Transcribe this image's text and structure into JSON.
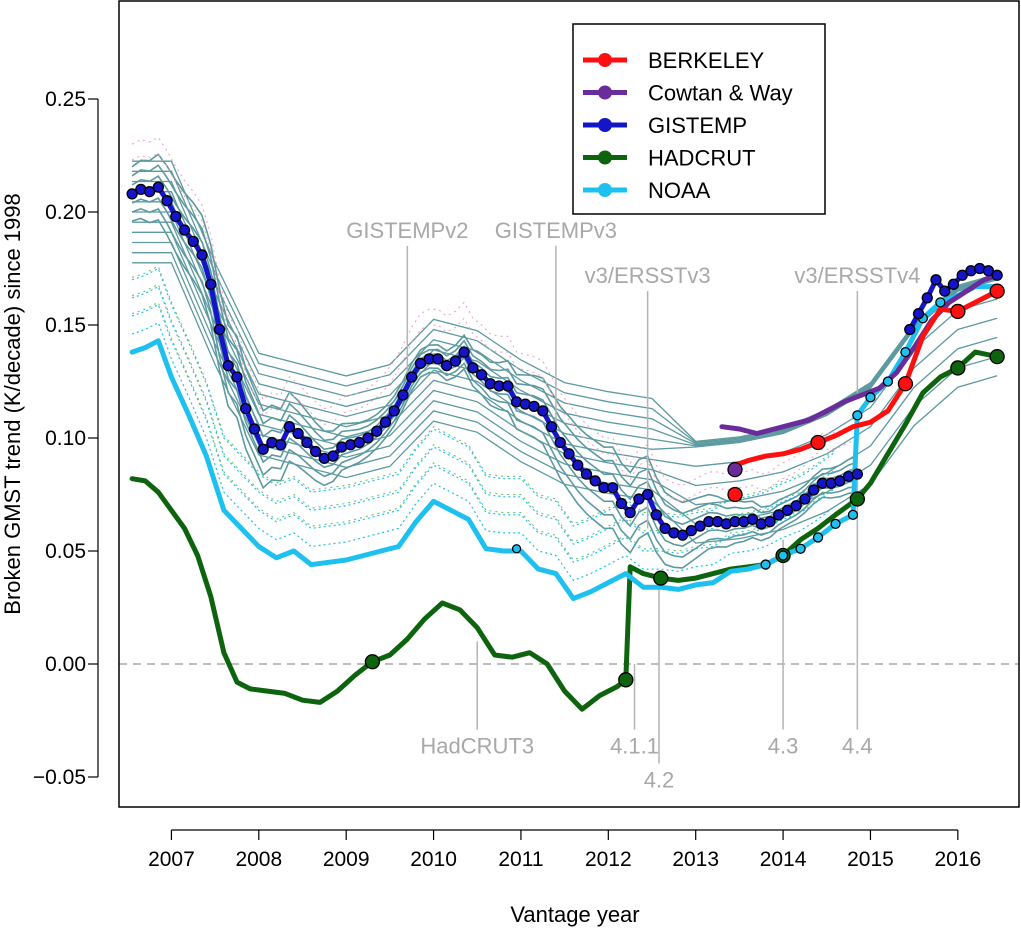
{
  "chart_data": {
    "type": "line",
    "xlabel": "Vantage year",
    "ylabel": "Broken GMST trend (K/decade) since 1998",
    "xlim": [
      2006.4,
      2016.7
    ],
    "ylim": [
      -0.06,
      0.285
    ],
    "x_ticks": [
      2007,
      2008,
      2009,
      2010,
      2011,
      2012,
      2013,
      2014,
      2015,
      2016
    ],
    "y_ticks": [
      -0.05,
      0.0,
      0.05,
      0.1,
      0.15,
      0.2,
      0.25
    ],
    "y_tick_labels": [
      "−0.05",
      "0.00",
      "0.05",
      "0.10",
      "0.15",
      "0.20",
      "0.25"
    ],
    "zero_line": 0.0,
    "legend": {
      "position": "top-right",
      "entries": [
        {
          "name": "BERKELEY",
          "color": "#ff1010"
        },
        {
          "name": "Cowtan & Way",
          "color": "#6a2c9a"
        },
        {
          "name": "GISTEMP",
          "color": "#1414c8"
        },
        {
          "name": "HADCRUT",
          "color": "#0e640e"
        },
        {
          "name": "NOAA",
          "color": "#1ec0f0"
        }
      ]
    },
    "version_markers": [
      {
        "label": "GISTEMPv2",
        "x": 2009.7,
        "y_top": 0.185,
        "y_bottom": 0.12,
        "side": "top"
      },
      {
        "label": "GISTEMPv3",
        "x": 2011.4,
        "y_top": 0.185,
        "y_bottom": 0.095,
        "side": "top"
      },
      {
        "label": "v3/ERSSTv3",
        "x": 2012.45,
        "y_top": 0.165,
        "y_bottom": 0.06,
        "side": "top"
      },
      {
        "label": "v3/ERSSTv4",
        "x": 2014.85,
        "y_top": 0.165,
        "y_bottom": 0.12,
        "side": "top"
      },
      {
        "label": "HadCRUT3",
        "x": 2010.5,
        "y_top": 0.01,
        "y_bottom": -0.029,
        "side": "bottom"
      },
      {
        "label": "4.1.1",
        "x": 2012.3,
        "y_top": 0.0,
        "y_bottom": -0.029,
        "side": "bottom"
      },
      {
        "label": "4.2",
        "x": 2012.58,
        "y_top": 0.04,
        "y_bottom": -0.044,
        "side": "bottom"
      },
      {
        "label": "4.3",
        "x": 2014.0,
        "y_top": 0.055,
        "y_bottom": -0.029,
        "side": "bottom"
      },
      {
        "label": "4.4",
        "x": 2014.85,
        "y_top": 0.085,
        "y_bottom": -0.029,
        "side": "bottom"
      }
    ],
    "series": [
      {
        "name": "GISTEMP",
        "color": "#1414c8",
        "x": [
          2006.55,
          2006.65,
          2006.75,
          2006.85,
          2006.95,
          2007.05,
          2007.15,
          2007.25,
          2007.35,
          2007.45,
          2007.55,
          2007.65,
          2007.75,
          2007.85,
          2007.95,
          2008.05,
          2008.15,
          2008.25,
          2008.35,
          2008.45,
          2008.55,
          2008.65,
          2008.75,
          2008.85,
          2008.95,
          2009.05,
          2009.15,
          2009.25,
          2009.35,
          2009.45,
          2009.55,
          2009.65,
          2009.75,
          2009.85,
          2009.95,
          2010.05,
          2010.15,
          2010.25,
          2010.35,
          2010.45,
          2010.55,
          2010.65,
          2010.75,
          2010.85,
          2010.95,
          2011.05,
          2011.15,
          2011.25,
          2011.35,
          2011.45,
          2011.55,
          2011.65,
          2011.75,
          2011.85,
          2011.95,
          2012.05,
          2012.15,
          2012.25,
          2012.35,
          2012.45,
          2012.55,
          2012.65,
          2012.75,
          2012.85,
          2012.95,
          2013.05,
          2013.15,
          2013.25,
          2013.35,
          2013.45,
          2013.55,
          2013.65,
          2013.75,
          2013.85,
          2013.95,
          2014.05,
          2014.15,
          2014.25,
          2014.35,
          2014.45,
          2014.55,
          2014.65,
          2014.75,
          2014.85
        ],
        "y": [
          0.208,
          0.21,
          0.209,
          0.211,
          0.205,
          0.198,
          0.192,
          0.187,
          0.181,
          0.168,
          0.148,
          0.132,
          0.127,
          0.113,
          0.104,
          0.095,
          0.098,
          0.097,
          0.105,
          0.102,
          0.098,
          0.094,
          0.091,
          0.092,
          0.096,
          0.097,
          0.098,
          0.1,
          0.103,
          0.107,
          0.112,
          0.119,
          0.127,
          0.133,
          0.135,
          0.135,
          0.132,
          0.134,
          0.138,
          0.131,
          0.128,
          0.124,
          0.123,
          0.123,
          0.116,
          0.115,
          0.114,
          0.112,
          0.105,
          0.098,
          0.093,
          0.088,
          0.084,
          0.081,
          0.078,
          0.078,
          0.071,
          0.067,
          0.073,
          0.075,
          0.066,
          0.06,
          0.058,
          0.057,
          0.059,
          0.061,
          0.063,
          0.063,
          0.062,
          0.063,
          0.063,
          0.064,
          0.062,
          0.063,
          0.066,
          0.068,
          0.07,
          0.073,
          0.077,
          0.08,
          0.08,
          0.081,
          0.083,
          0.084
        ],
        "markers": "all"
      },
      {
        "name": "GISTEMP (ERSSTv4)",
        "color": "#1414c8",
        "x": [
          2015.45,
          2015.55,
          2015.65,
          2015.75,
          2015.85,
          2015.95,
          2016.05,
          2016.15,
          2016.25,
          2016.35,
          2016.45
        ],
        "y": [
          0.148,
          0.155,
          0.162,
          0.17,
          0.165,
          0.168,
          0.172,
          0.174,
          0.175,
          0.174,
          0.172
        ],
        "markers": "all"
      },
      {
        "name": "NOAA",
        "color": "#1ec0f0",
        "x": [
          2006.55,
          2006.7,
          2006.85,
          2007.0,
          2007.2,
          2007.4,
          2007.6,
          2007.8,
          2008.0,
          2008.2,
          2008.4,
          2008.6,
          2008.8,
          2009.0,
          2009.2,
          2009.4,
          2009.6,
          2009.8,
          2010.0,
          2010.2,
          2010.4,
          2010.6,
          2010.8,
          2011.0,
          2011.2,
          2011.4,
          2011.6,
          2011.8,
          2012.0,
          2012.2,
          2012.4,
          2012.6,
          2012.8,
          2013.0,
          2013.2,
          2013.4,
          2013.6,
          2013.8,
          2014.0,
          2014.2,
          2014.4,
          2014.6,
          2014.8,
          2014.85,
          2015.0,
          2015.2,
          2015.4,
          2015.6,
          2015.8,
          2016.0,
          2016.2,
          2016.45
        ],
        "y": [
          0.138,
          0.14,
          0.143,
          0.127,
          0.11,
          0.092,
          0.068,
          0.06,
          0.052,
          0.047,
          0.05,
          0.044,
          0.045,
          0.046,
          0.048,
          0.05,
          0.052,
          0.063,
          0.072,
          0.068,
          0.064,
          0.051,
          0.05,
          0.05,
          0.042,
          0.04,
          0.029,
          0.032,
          0.036,
          0.04,
          0.034,
          0.034,
          0.033,
          0.035,
          0.036,
          0.041,
          0.042,
          0.044,
          0.048,
          0.051,
          0.056,
          0.062,
          0.066,
          0.11,
          0.118,
          0.125,
          0.138,
          0.153,
          0.16,
          0.163,
          0.167,
          0.167
        ],
        "markers": "partial"
      },
      {
        "name": "HADCRUT",
        "color": "#0e640e",
        "x": [
          2006.55,
          2006.7,
          2006.85,
          2007.0,
          2007.15,
          2007.3,
          2007.45,
          2007.6,
          2007.75,
          2007.9,
          2008.1,
          2008.3,
          2008.5,
          2008.7,
          2008.9,
          2009.1,
          2009.3,
          2009.5,
          2009.7,
          2009.9,
          2010.1,
          2010.3,
          2010.5,
          2010.7,
          2010.9,
          2011.1,
          2011.3,
          2011.5,
          2011.7,
          2011.9,
          2012.1,
          2012.2,
          2012.25,
          2012.4,
          2012.6,
          2012.8,
          2013.0,
          2013.2,
          2013.4,
          2013.6,
          2013.8,
          2014.0,
          2014.2,
          2014.4,
          2014.6,
          2014.85,
          2015.0,
          2015.2,
          2015.4,
          2015.6,
          2015.8,
          2016.0,
          2016.2,
          2016.45
        ],
        "y": [
          0.082,
          0.081,
          0.076,
          0.068,
          0.06,
          0.048,
          0.03,
          0.005,
          -0.008,
          -0.011,
          -0.012,
          -0.013,
          -0.016,
          -0.017,
          -0.012,
          -0.005,
          0.001,
          0.004,
          0.011,
          0.02,
          0.027,
          0.024,
          0.016,
          0.004,
          0.003,
          0.005,
          0.0,
          -0.012,
          -0.02,
          -0.014,
          -0.01,
          -0.007,
          0.043,
          0.04,
          0.038,
          0.037,
          0.038,
          0.04,
          0.042,
          0.043,
          0.044,
          0.048,
          0.055,
          0.06,
          0.066,
          0.073,
          0.08,
          0.093,
          0.106,
          0.12,
          0.127,
          0.131,
          0.138,
          0.136
        ],
        "markers": "partial"
      },
      {
        "name": "BERKELEY",
        "color": "#ff1010",
        "x": [
          2013.45,
          2013.6,
          2013.8,
          2014.0,
          2014.2,
          2014.4,
          2014.6,
          2014.8,
          2015.0,
          2015.2,
          2015.4,
          2015.6,
          2015.8,
          2016.0,
          2016.2,
          2016.45
        ],
        "y": [
          0.088,
          0.09,
          0.092,
          0.093,
          0.095,
          0.098,
          0.101,
          0.105,
          0.107,
          0.112,
          0.124,
          0.145,
          0.157,
          0.156,
          0.16,
          0.165
        ],
        "markers": "partial"
      },
      {
        "name": "Cowtan & Way",
        "color": "#6a2c9a",
        "x": [
          2013.3,
          2013.5,
          2013.7,
          2013.9,
          2014.1,
          2014.3,
          2014.5,
          2014.7,
          2014.9,
          2015.1,
          2015.3,
          2015.5,
          2015.7,
          2015.9,
          2016.1,
          2016.3,
          2016.45
        ],
        "y": [
          0.105,
          0.104,
          0.102,
          0.104,
          0.106,
          0.108,
          0.112,
          0.116,
          0.119,
          0.122,
          0.129,
          0.14,
          0.152,
          0.16,
          0.165,
          0.17,
          0.172
        ],
        "markers": "partial"
      }
    ],
    "singletons": [
      {
        "series": "BERKELEY",
        "x": 2013.45,
        "y": 0.075
      },
      {
        "series": "Cowtan & Way",
        "x": 2013.45,
        "y": 0.086
      },
      {
        "series": "NOAA",
        "x": 2010.95,
        "y": 0.051
      }
    ]
  }
}
